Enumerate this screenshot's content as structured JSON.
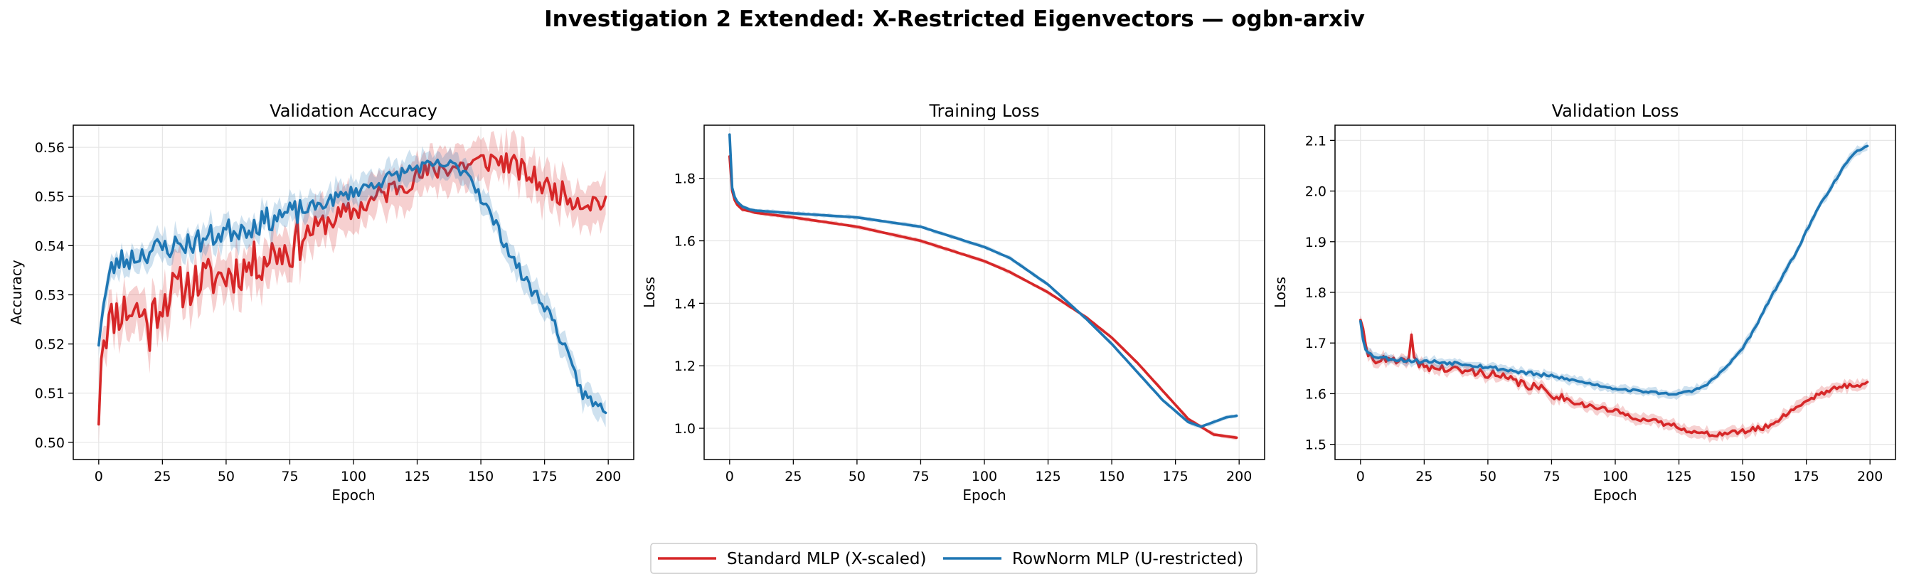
{
  "figure": {
    "title": "Investigation 2 Extended: X-Restricted Eigenvectors — ogbn-arxiv",
    "legend": {
      "placement": "bottom-center",
      "entries": [
        {
          "label": "Standard MLP (X-scaled)",
          "color": "#d62728"
        },
        {
          "label": "RowNorm MLP (U-restricted)",
          "color": "#1f77b4"
        }
      ]
    }
  },
  "chart_data": [
    {
      "type": "line",
      "title": "Validation Accuracy",
      "xlabel": "Epoch",
      "ylabel": "Accuracy",
      "xlim": [
        -10,
        210
      ],
      "ylim": [
        0.4965,
        0.5645
      ],
      "xticks": [
        0,
        25,
        50,
        75,
        100,
        125,
        150,
        175,
        200
      ],
      "yticks": [
        0.5,
        0.51,
        0.52,
        0.53,
        0.54,
        0.55,
        0.56
      ],
      "ytick_decimals": 2,
      "grid": true,
      "shaded_band": "variability band around each mean curve",
      "series": [
        {
          "name": "Standard MLP (X-scaled)",
          "color": "#d62728",
          "noise": 0.0045,
          "band": 0.004,
          "seed": 11,
          "x": [
            0,
            1,
            2,
            4,
            6,
            10,
            15,
            19,
            20,
            21,
            25,
            30,
            40,
            50,
            60,
            70,
            75,
            80,
            90,
            100,
            110,
            120,
            125,
            130,
            135,
            140,
            145,
            150,
            155,
            160,
            165,
            170,
            175,
            180,
            190,
            199
          ],
          "mean": [
            0.506,
            0.519,
            0.522,
            0.524,
            0.526,
            0.527,
            0.527,
            0.525,
            0.522,
            0.526,
            0.529,
            0.531,
            0.533,
            0.534,
            0.536,
            0.539,
            0.539,
            0.542,
            0.545,
            0.547,
            0.55,
            0.553,
            0.554,
            0.555,
            0.556,
            0.556,
            0.5565,
            0.557,
            0.5575,
            0.557,
            0.5555,
            0.554,
            0.552,
            0.551,
            0.549,
            0.549
          ]
        },
        {
          "name": "RowNorm MLP (U-restricted)",
          "color": "#1f77b4",
          "noise": 0.0025,
          "band": 0.0025,
          "seed": 23,
          "x": [
            0,
            1,
            2,
            3,
            5,
            8,
            10,
            20,
            30,
            40,
            50,
            60,
            70,
            80,
            90,
            100,
            110,
            120,
            125,
            130,
            135,
            140,
            145,
            150,
            155,
            160,
            165,
            170,
            175,
            180,
            185,
            190,
            195,
            199
          ],
          "mean": [
            0.521,
            0.525,
            0.528,
            0.531,
            0.535,
            0.537,
            0.537,
            0.539,
            0.54,
            0.541,
            0.543,
            0.544,
            0.546,
            0.547,
            0.549,
            0.551,
            0.553,
            0.555,
            0.556,
            0.556,
            0.5565,
            0.556,
            0.555,
            0.55,
            0.545,
            0.54,
            0.535,
            0.531,
            0.528,
            0.523,
            0.516,
            0.51,
            0.5075,
            0.507
          ]
        }
      ]
    },
    {
      "type": "line",
      "title": "Training Loss",
      "xlabel": "Epoch",
      "ylabel": "Loss",
      "xlim": [
        -10,
        210
      ],
      "ylim": [
        0.9,
        1.97
      ],
      "xticks": [
        0,
        25,
        50,
        75,
        100,
        125,
        150,
        175,
        200
      ],
      "yticks": [
        1.0,
        1.2,
        1.4,
        1.6,
        1.8
      ],
      "ytick_decimals": 1,
      "grid": true,
      "series": [
        {
          "name": "Standard MLP (X-scaled)",
          "color": "#d62728",
          "noise": 0,
          "band": 0.006,
          "seed": 31,
          "x": [
            0,
            1,
            2,
            3,
            5,
            8,
            10,
            25,
            50,
            75,
            100,
            110,
            125,
            140,
            150,
            160,
            170,
            180,
            190,
            199
          ],
          "mean": [
            1.87,
            1.76,
            1.73,
            1.715,
            1.7,
            1.695,
            1.69,
            1.675,
            1.645,
            1.6,
            1.535,
            1.5,
            1.435,
            1.355,
            1.29,
            1.21,
            1.12,
            1.03,
            0.98,
            0.97
          ]
        },
        {
          "name": "RowNorm MLP (U-restricted)",
          "color": "#1f77b4",
          "noise": 0,
          "band": 0.006,
          "seed": 37,
          "x": [
            0,
            1,
            2,
            3,
            5,
            8,
            10,
            25,
            50,
            75,
            100,
            110,
            125,
            140,
            150,
            160,
            170,
            180,
            185,
            190,
            195,
            199
          ],
          "mean": [
            1.94,
            1.77,
            1.74,
            1.725,
            1.71,
            1.7,
            1.697,
            1.688,
            1.675,
            1.645,
            1.58,
            1.545,
            1.46,
            1.35,
            1.27,
            1.18,
            1.09,
            1.02,
            1.005,
            1.02,
            1.035,
            1.04
          ]
        }
      ]
    },
    {
      "type": "line",
      "title": "Validation Loss",
      "xlabel": "Epoch",
      "ylabel": "Loss",
      "xlim": [
        -10,
        210
      ],
      "ylim": [
        1.47,
        2.13
      ],
      "xticks": [
        0,
        25,
        50,
        75,
        100,
        125,
        150,
        175,
        200
      ],
      "yticks": [
        1.5,
        1.6,
        1.7,
        1.8,
        1.9,
        2.0,
        2.1
      ],
      "ytick_decimals": 1,
      "grid": true,
      "series": [
        {
          "name": "Standard MLP (X-scaled)",
          "color": "#d62728",
          "noise": 0.009,
          "band": 0.01,
          "seed": 41,
          "x": [
            0,
            1,
            2,
            3,
            5,
            10,
            18,
            19,
            20,
            21,
            22,
            25,
            30,
            40,
            50,
            60,
            70,
            75,
            80,
            90,
            100,
            110,
            120,
            125,
            130,
            135,
            140,
            150,
            160,
            170,
            175,
            180,
            190,
            199
          ],
          "mean": [
            1.75,
            1.72,
            1.69,
            1.68,
            1.67,
            1.665,
            1.66,
            1.68,
            1.71,
            1.67,
            1.66,
            1.655,
            1.65,
            1.645,
            1.64,
            1.625,
            1.61,
            1.6,
            1.59,
            1.575,
            1.565,
            1.55,
            1.54,
            1.535,
            1.525,
            1.52,
            1.52,
            1.525,
            1.535,
            1.57,
            1.585,
            1.6,
            1.615,
            1.62
          ]
        },
        {
          "name": "RowNorm MLP (U-restricted)",
          "color": "#1f77b4",
          "noise": 0.004,
          "band": 0.008,
          "seed": 53,
          "x": [
            0,
            1,
            2,
            3,
            5,
            10,
            20,
            40,
            60,
            80,
            100,
            110,
            120,
            125,
            130,
            135,
            140,
            145,
            150,
            155,
            160,
            170,
            180,
            190,
            195,
            199
          ],
          "mean": [
            1.745,
            1.71,
            1.69,
            1.68,
            1.675,
            1.67,
            1.665,
            1.66,
            1.645,
            1.63,
            1.61,
            1.605,
            1.6,
            1.6,
            1.605,
            1.615,
            1.635,
            1.66,
            1.69,
            1.73,
            1.78,
            1.87,
            1.97,
            2.05,
            2.08,
            2.09
          ]
        }
      ]
    }
  ]
}
